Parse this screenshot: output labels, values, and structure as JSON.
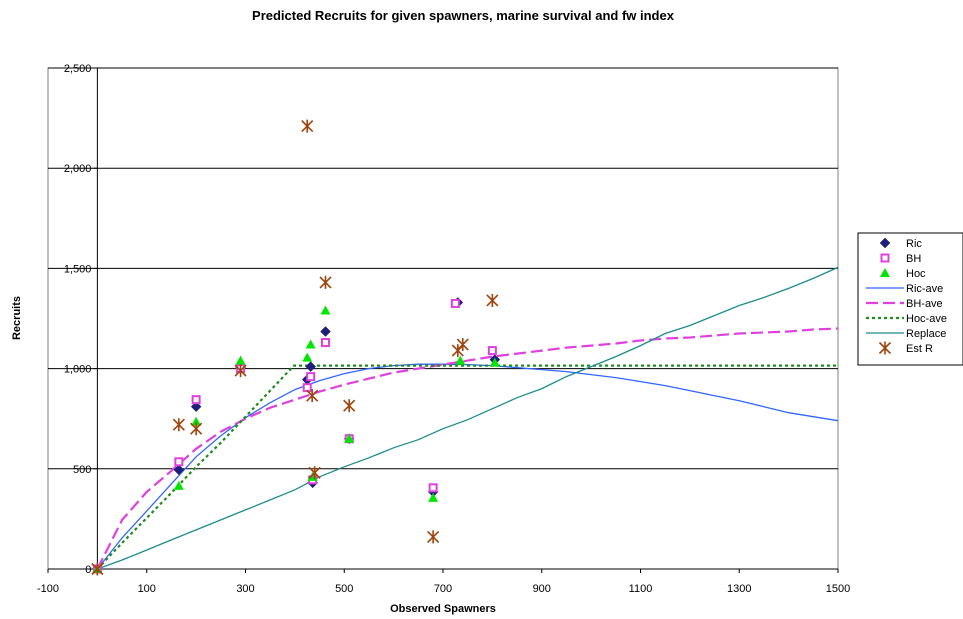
{
  "chart_data": {
    "type": "scatter",
    "title": "Predicted Recruits for given spawners, marine survival and fw index",
    "xlabel": "Observed Spawners",
    "ylabel": "Recruits",
    "xlim": [
      -100,
      1500
    ],
    "ylim": [
      0,
      2500
    ],
    "x_ticks": [
      -100,
      100,
      300,
      500,
      700,
      900,
      1100,
      1300,
      1500
    ],
    "x_tick_labels": [
      "-100",
      "100",
      "300",
      "500",
      "700",
      "900",
      "1100",
      "1300",
      "1500"
    ],
    "y_ticks": [
      0,
      500,
      1000,
      1500,
      2000,
      2500
    ],
    "y_tick_labels": [
      "0",
      "500",
      "1,000",
      "1,500",
      "2,000",
      "2,500"
    ],
    "grid": "horizontal",
    "legend_position": "right",
    "series": [
      {
        "name": "Ric",
        "kind": "marker",
        "marker": "diamond",
        "color": "#1F1F7A",
        "points": [
          [
            0,
            0
          ],
          [
            165,
            495
          ],
          [
            200,
            810
          ],
          [
            290,
            1005
          ],
          [
            425,
            945
          ],
          [
            432,
            1010
          ],
          [
            436,
            430
          ],
          [
            462,
            1185
          ],
          [
            510,
            650
          ],
          [
            680,
            385
          ],
          [
            730,
            1330
          ],
          [
            805,
            1045
          ]
        ]
      },
      {
        "name": "BH",
        "kind": "marker",
        "marker": "square",
        "color": "#E040E0",
        "points": [
          [
            0,
            0
          ],
          [
            165,
            535
          ],
          [
            200,
            845
          ],
          [
            290,
            1000
          ],
          [
            425,
            905
          ],
          [
            432,
            960
          ],
          [
            436,
            445
          ],
          [
            462,
            1130
          ],
          [
            510,
            650
          ],
          [
            680,
            405
          ],
          [
            725,
            1325
          ],
          [
            800,
            1090
          ]
        ]
      },
      {
        "name": "Hoc",
        "kind": "marker",
        "marker": "triangle",
        "color": "#00E600",
        "points": [
          [
            0,
            0
          ],
          [
            165,
            415
          ],
          [
            200,
            735
          ],
          [
            290,
            1040
          ],
          [
            425,
            1055
          ],
          [
            432,
            1120
          ],
          [
            436,
            460
          ],
          [
            462,
            1290
          ],
          [
            510,
            650
          ],
          [
            680,
            355
          ],
          [
            735,
            1040
          ],
          [
            805,
            1030
          ]
        ]
      },
      {
        "name": "Ric-ave",
        "kind": "line",
        "style": "solid",
        "color": "#3366FF",
        "points": [
          [
            0,
            0
          ],
          [
            50,
            155
          ],
          [
            100,
            290
          ],
          [
            150,
            425
          ],
          [
            200,
            560
          ],
          [
            250,
            665
          ],
          [
            300,
            755
          ],
          [
            350,
            830
          ],
          [
            400,
            895
          ],
          [
            450,
            940
          ],
          [
            500,
            975
          ],
          [
            550,
            1000
          ],
          [
            600,
            1015
          ],
          [
            650,
            1022
          ],
          [
            700,
            1022
          ],
          [
            750,
            1020
          ],
          [
            800,
            1015
          ],
          [
            850,
            1005
          ],
          [
            900,
            995
          ],
          [
            950,
            985
          ],
          [
            1000,
            970
          ],
          [
            1050,
            955
          ],
          [
            1100,
            935
          ],
          [
            1150,
            915
          ],
          [
            1200,
            890
          ],
          [
            1250,
            865
          ],
          [
            1300,
            840
          ],
          [
            1350,
            810
          ],
          [
            1400,
            780
          ],
          [
            1450,
            760
          ],
          [
            1500,
            740
          ]
        ]
      },
      {
        "name": "BH-ave",
        "kind": "line",
        "style": "long-dash",
        "color": "#E040E0",
        "points": [
          [
            0,
            0
          ],
          [
            50,
            245
          ],
          [
            100,
            385
          ],
          [
            150,
            490
          ],
          [
            200,
            600
          ],
          [
            250,
            685
          ],
          [
            300,
            750
          ],
          [
            350,
            805
          ],
          [
            400,
            845
          ],
          [
            450,
            885
          ],
          [
            500,
            920
          ],
          [
            550,
            950
          ],
          [
            600,
            980
          ],
          [
            650,
            1000
          ],
          [
            700,
            1020
          ],
          [
            750,
            1040
          ],
          [
            800,
            1060
          ],
          [
            850,
            1075
          ],
          [
            900,
            1090
          ],
          [
            950,
            1105
          ],
          [
            1000,
            1115
          ],
          [
            1050,
            1125
          ],
          [
            1100,
            1140
          ],
          [
            1150,
            1150
          ],
          [
            1200,
            1155
          ],
          [
            1250,
            1165
          ],
          [
            1300,
            1175
          ],
          [
            1350,
            1180
          ],
          [
            1400,
            1185
          ],
          [
            1450,
            1195
          ],
          [
            1500,
            1200
          ]
        ]
      },
      {
        "name": "Hoc-ave",
        "kind": "line",
        "style": "dotted",
        "color": "#1E8C1E",
        "points": [
          [
            0,
            0
          ],
          [
            50,
            130
          ],
          [
            100,
            255
          ],
          [
            150,
            380
          ],
          [
            200,
            510
          ],
          [
            250,
            630
          ],
          [
            300,
            760
          ],
          [
            350,
            890
          ],
          [
            398,
            1015
          ],
          [
            1500,
            1015
          ]
        ]
      },
      {
        "name": "Replace",
        "kind": "line",
        "style": "solid",
        "color": "#1E8C8C",
        "points": [
          [
            0,
            0
          ],
          [
            50,
            45
          ],
          [
            100,
            95
          ],
          [
            150,
            145
          ],
          [
            200,
            195
          ],
          [
            250,
            245
          ],
          [
            300,
            295
          ],
          [
            350,
            345
          ],
          [
            400,
            395
          ],
          [
            450,
            460
          ],
          [
            500,
            510
          ],
          [
            550,
            555
          ],
          [
            600,
            605
          ],
          [
            650,
            645
          ],
          [
            700,
            700
          ],
          [
            750,
            745
          ],
          [
            800,
            800
          ],
          [
            850,
            855
          ],
          [
            900,
            900
          ],
          [
            950,
            960
          ],
          [
            1000,
            1010
          ],
          [
            1050,
            1060
          ],
          [
            1100,
            1115
          ],
          [
            1150,
            1175
          ],
          [
            1200,
            1215
          ],
          [
            1250,
            1265
          ],
          [
            1300,
            1315
          ],
          [
            1350,
            1355
          ],
          [
            1400,
            1400
          ],
          [
            1450,
            1450
          ],
          [
            1500,
            1505
          ]
        ]
      },
      {
        "name": "Est R",
        "kind": "marker",
        "marker": "star",
        "color": "#A0420A",
        "points": [
          [
            0,
            0
          ],
          [
            165,
            720
          ],
          [
            200,
            700
          ],
          [
            290,
            990
          ],
          [
            425,
            2210
          ],
          [
            435,
            865
          ],
          [
            440,
            480
          ],
          [
            462,
            1430
          ],
          [
            510,
            815
          ],
          [
            680,
            160
          ],
          [
            730,
            1090
          ],
          [
            740,
            1120
          ],
          [
            800,
            1340
          ]
        ]
      }
    ]
  }
}
